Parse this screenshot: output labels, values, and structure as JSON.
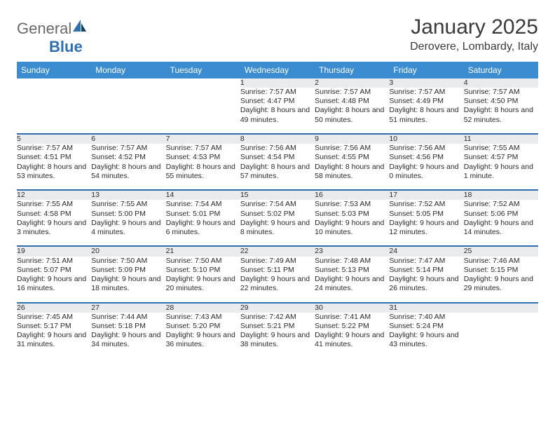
{
  "logo": {
    "text1": "General",
    "text2": "Blue"
  },
  "title": "January 2025",
  "location": "Derovere, Lombardy, Italy",
  "colors": {
    "header_bg": "#3a8bd0",
    "header_text": "#ffffff",
    "daynum_bg": "#e9ebec",
    "row_border": "#2d6fb0",
    "body_text": "#2a2a2a",
    "title_text": "#3a3a3a",
    "logo_gray": "#6a6a6a",
    "logo_blue": "#2d6fb0"
  },
  "day_headers": [
    "Sunday",
    "Monday",
    "Tuesday",
    "Wednesday",
    "Thursday",
    "Friday",
    "Saturday"
  ],
  "weeks": [
    [
      null,
      null,
      null,
      {
        "n": "1",
        "sr": "7:57 AM",
        "ss": "4:47 PM",
        "dl": "8 hours and 49 minutes."
      },
      {
        "n": "2",
        "sr": "7:57 AM",
        "ss": "4:48 PM",
        "dl": "8 hours and 50 minutes."
      },
      {
        "n": "3",
        "sr": "7:57 AM",
        "ss": "4:49 PM",
        "dl": "8 hours and 51 minutes."
      },
      {
        "n": "4",
        "sr": "7:57 AM",
        "ss": "4:50 PM",
        "dl": "8 hours and 52 minutes."
      }
    ],
    [
      {
        "n": "5",
        "sr": "7:57 AM",
        "ss": "4:51 PM",
        "dl": "8 hours and 53 minutes."
      },
      {
        "n": "6",
        "sr": "7:57 AM",
        "ss": "4:52 PM",
        "dl": "8 hours and 54 minutes."
      },
      {
        "n": "7",
        "sr": "7:57 AM",
        "ss": "4:53 PM",
        "dl": "8 hours and 55 minutes."
      },
      {
        "n": "8",
        "sr": "7:56 AM",
        "ss": "4:54 PM",
        "dl": "8 hours and 57 minutes."
      },
      {
        "n": "9",
        "sr": "7:56 AM",
        "ss": "4:55 PM",
        "dl": "8 hours and 58 minutes."
      },
      {
        "n": "10",
        "sr": "7:56 AM",
        "ss": "4:56 PM",
        "dl": "9 hours and 0 minutes."
      },
      {
        "n": "11",
        "sr": "7:55 AM",
        "ss": "4:57 PM",
        "dl": "9 hours and 1 minute."
      }
    ],
    [
      {
        "n": "12",
        "sr": "7:55 AM",
        "ss": "4:58 PM",
        "dl": "9 hours and 3 minutes."
      },
      {
        "n": "13",
        "sr": "7:55 AM",
        "ss": "5:00 PM",
        "dl": "9 hours and 4 minutes."
      },
      {
        "n": "14",
        "sr": "7:54 AM",
        "ss": "5:01 PM",
        "dl": "9 hours and 6 minutes."
      },
      {
        "n": "15",
        "sr": "7:54 AM",
        "ss": "5:02 PM",
        "dl": "9 hours and 8 minutes."
      },
      {
        "n": "16",
        "sr": "7:53 AM",
        "ss": "5:03 PM",
        "dl": "9 hours and 10 minutes."
      },
      {
        "n": "17",
        "sr": "7:52 AM",
        "ss": "5:05 PM",
        "dl": "9 hours and 12 minutes."
      },
      {
        "n": "18",
        "sr": "7:52 AM",
        "ss": "5:06 PM",
        "dl": "9 hours and 14 minutes."
      }
    ],
    [
      {
        "n": "19",
        "sr": "7:51 AM",
        "ss": "5:07 PM",
        "dl": "9 hours and 16 minutes."
      },
      {
        "n": "20",
        "sr": "7:50 AM",
        "ss": "5:09 PM",
        "dl": "9 hours and 18 minutes."
      },
      {
        "n": "21",
        "sr": "7:50 AM",
        "ss": "5:10 PM",
        "dl": "9 hours and 20 minutes."
      },
      {
        "n": "22",
        "sr": "7:49 AM",
        "ss": "5:11 PM",
        "dl": "9 hours and 22 minutes."
      },
      {
        "n": "23",
        "sr": "7:48 AM",
        "ss": "5:13 PM",
        "dl": "9 hours and 24 minutes."
      },
      {
        "n": "24",
        "sr": "7:47 AM",
        "ss": "5:14 PM",
        "dl": "9 hours and 26 minutes."
      },
      {
        "n": "25",
        "sr": "7:46 AM",
        "ss": "5:15 PM",
        "dl": "9 hours and 29 minutes."
      }
    ],
    [
      {
        "n": "26",
        "sr": "7:45 AM",
        "ss": "5:17 PM",
        "dl": "9 hours and 31 minutes."
      },
      {
        "n": "27",
        "sr": "7:44 AM",
        "ss": "5:18 PM",
        "dl": "9 hours and 34 minutes."
      },
      {
        "n": "28",
        "sr": "7:43 AM",
        "ss": "5:20 PM",
        "dl": "9 hours and 36 minutes."
      },
      {
        "n": "29",
        "sr": "7:42 AM",
        "ss": "5:21 PM",
        "dl": "9 hours and 38 minutes."
      },
      {
        "n": "30",
        "sr": "7:41 AM",
        "ss": "5:22 PM",
        "dl": "9 hours and 41 minutes."
      },
      {
        "n": "31",
        "sr": "7:40 AM",
        "ss": "5:24 PM",
        "dl": "9 hours and 43 minutes."
      },
      null
    ]
  ],
  "labels": {
    "sunrise": "Sunrise:",
    "sunset": "Sunset:",
    "daylight": "Daylight:"
  }
}
